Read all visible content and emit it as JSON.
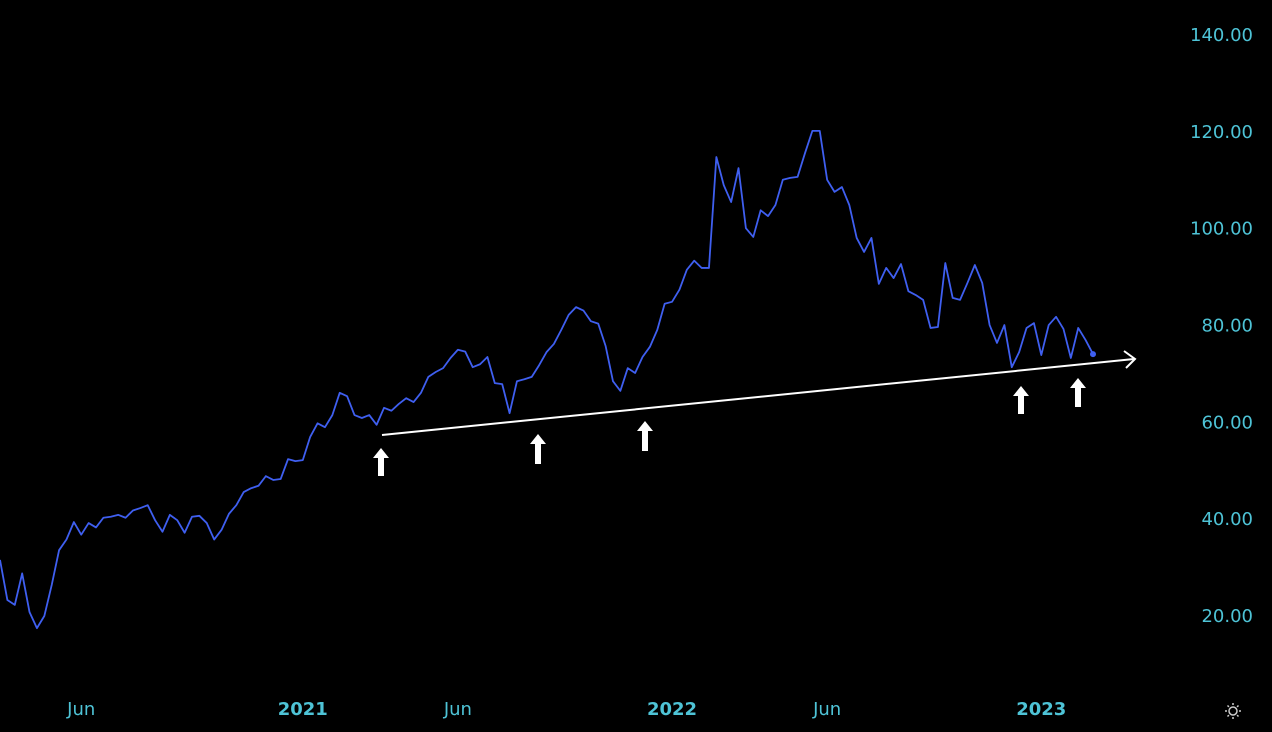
{
  "chart_data": {
    "type": "line",
    "categories": [
      null,
      null,
      null,
      null,
      null,
      null,
      null,
      null,
      null,
      null,
      null,
      "Jun",
      null,
      null,
      null,
      null,
      null,
      null,
      null,
      null,
      null,
      null,
      null,
      null,
      null,
      null,
      null,
      null,
      null,
      null,
      null,
      null,
      null,
      null,
      null,
      null,
      null,
      null,
      null,
      null,
      null,
      "2021",
      null,
      null,
      null,
      null,
      null,
      null,
      null,
      null,
      null,
      null,
      null,
      null,
      null,
      null,
      null,
      null,
      null,
      null,
      null,
      null,
      "Jun",
      null,
      null,
      null,
      null,
      null,
      null,
      null,
      null,
      null,
      null,
      null,
      null,
      null,
      null,
      null,
      null,
      null,
      null,
      null,
      null,
      null,
      null,
      null,
      null,
      null,
      null,
      null,
      null,
      "2022",
      null,
      null,
      null,
      null,
      null,
      null,
      null,
      null,
      null,
      null,
      null,
      null,
      null,
      null,
      null,
      null,
      null,
      null,
      null,
      null,
      "Jun",
      null,
      null,
      null,
      null,
      null,
      null,
      null,
      null,
      null,
      null,
      null,
      null,
      null,
      null,
      null,
      null,
      null,
      null,
      null,
      null,
      null,
      null,
      null,
      null,
      null,
      null,
      null,
      null,
      "2023",
      null,
      null,
      null,
      null,
      null,
      null,
      null
    ],
    "series": [
      {
        "color": "#3f5ff0",
        "values": [
          31.8,
          23.5,
          22.5,
          29,
          21,
          17.7,
          20.2,
          26.6,
          33.8,
          36,
          39.6,
          37,
          39.4,
          38.5,
          40.5,
          40.7,
          41.1,
          40.5,
          42,
          42.5,
          43.1,
          40,
          37.6,
          41.1,
          40,
          37.4,
          40.7,
          40.9,
          39.4,
          36,
          38,
          41.3,
          43.1,
          45.8,
          46.6,
          47.1,
          49.1,
          48.3,
          48.5,
          52.6,
          52.2,
          52.4,
          57.2,
          60,
          59.2,
          61.7,
          66.3,
          65.6,
          61.7,
          61.1,
          61.7,
          59.7,
          63.2,
          62.6,
          64,
          65.2,
          64.4,
          66.3,
          69.6,
          70.6,
          71.4,
          73.5,
          75.2,
          74.8,
          71.6,
          72.2,
          73.7,
          68.3,
          68.1,
          62.1,
          68.7,
          69.1,
          69.6,
          72,
          74.7,
          76.4,
          79.3,
          82.4,
          84,
          83.3,
          81.1,
          80.6,
          76,
          68.7,
          66.7,
          71.4,
          70.4,
          73.7,
          75.8,
          79.3,
          84.7,
          85.1,
          87.6,
          91.7,
          93.6,
          92.1,
          92.1,
          115,
          109.2,
          105.7,
          112.7,
          100.3,
          98.5,
          104,
          102.8,
          105.1,
          110.3,
          110.7,
          110.9,
          115.8,
          120.4,
          120.4,
          110.3,
          107.8,
          108.8,
          105.1,
          98.3,
          95.4,
          98.3,
          88.8,
          92.1,
          90,
          92.9,
          87.3,
          86.5,
          85.5,
          79.7,
          79.9,
          93.1,
          85.9,
          85.5,
          89,
          92.7,
          89,
          80.3,
          76.6,
          80.3,
          71.6,
          74.7,
          79.7,
          80.7,
          74.1,
          80.3,
          82,
          79.5,
          73.5,
          79.7,
          77.2,
          74.3
        ]
      }
    ],
    "ylim": [
      20,
      140
    ],
    "yticks": [
      {
        "value": 20,
        "label": "20.00"
      },
      {
        "value": 40,
        "label": "40.00"
      },
      {
        "value": 60,
        "label": "60.00"
      },
      {
        "value": 80,
        "label": "80.00"
      },
      {
        "value": 100,
        "label": "100.00"
      },
      {
        "value": 120,
        "label": "120.00"
      },
      {
        "value": 140,
        "label": "140.00"
      }
    ],
    "axis_color": "#4ec3d6"
  }
}
